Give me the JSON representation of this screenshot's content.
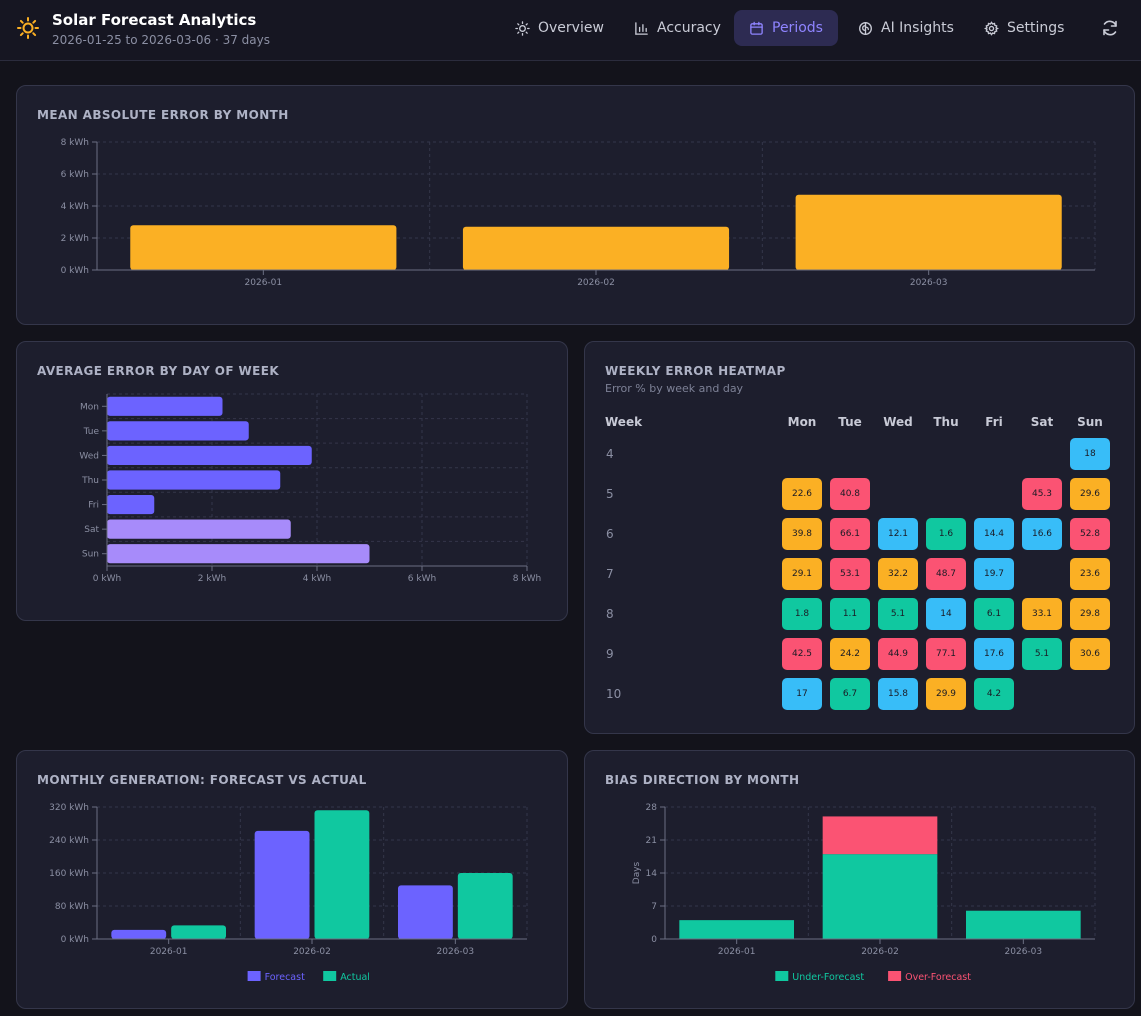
{
  "header": {
    "title": "Solar Forecast Analytics",
    "subtitle": "2026-01-25 to 2026-03-06 · 37 days",
    "nav": [
      {
        "label": "Overview",
        "icon": "sun-icon"
      },
      {
        "label": "Accuracy",
        "icon": "bar-chart-icon"
      },
      {
        "label": "Periods",
        "icon": "calendar-icon",
        "active": true
      },
      {
        "label": "AI Insights",
        "icon": "brain-icon"
      },
      {
        "label": "Settings",
        "icon": "gear-icon"
      }
    ],
    "refresh_icon": "refresh-icon"
  },
  "colors": {
    "accent": "#8f84ff",
    "amber": "#fbb024",
    "purple": "#6c63ff",
    "lavender": "#a78bfa",
    "green": "#10c8a0",
    "red": "#fb5373",
    "blue": "#38bdf8"
  },
  "cards": {
    "mae": {
      "title": "MEAN ABSOLUTE ERROR BY MONTH"
    },
    "dow": {
      "title": "AVERAGE ERROR BY DAY OF WEEK"
    },
    "heatmap": {
      "title": "WEEKLY ERROR HEATMAP",
      "subtitle": "Error % by week and day"
    },
    "monthly": {
      "title": "MONTHLY GENERATION: FORECAST VS ACTUAL"
    },
    "bias": {
      "title": "BIAS DIRECTION BY MONTH"
    }
  },
  "chart_data": [
    {
      "id": "mae",
      "type": "bar",
      "categories": [
        "2026-01",
        "2026-02",
        "2026-03"
      ],
      "values": [
        2.8,
        2.7,
        4.7
      ],
      "ylim": [
        0,
        8
      ],
      "yticks": [
        0,
        2,
        4,
        6,
        8
      ],
      "ytick_labels": [
        "0 kWh",
        "2 kWh",
        "4 kWh",
        "6 kWh",
        "8 kWh"
      ],
      "color": "#fbb024",
      "grid": true
    },
    {
      "id": "dow",
      "type": "bar",
      "orientation": "horizontal",
      "categories": [
        "Mon",
        "Tue",
        "Wed",
        "Thu",
        "Fri",
        "Sat",
        "Sun"
      ],
      "values": [
        2.2,
        2.7,
        3.9,
        3.3,
        0.9,
        3.5,
        5.0
      ],
      "xlim": [
        0,
        8
      ],
      "xticks": [
        0,
        2,
        4,
        6,
        8
      ],
      "xtick_labels": [
        "0 kWh",
        "2 kWh",
        "4 kWh",
        "6 kWh",
        "8 kWh"
      ],
      "colors": [
        "#6c63ff",
        "#6c63ff",
        "#6c63ff",
        "#6c63ff",
        "#6c63ff",
        "#a78bfa",
        "#a78bfa"
      ],
      "grid": true
    },
    {
      "id": "heatmap",
      "type": "heatmap",
      "week_label": "Week",
      "days": [
        "Mon",
        "Tue",
        "Wed",
        "Thu",
        "Fri",
        "Sat",
        "Sun"
      ],
      "rows": [
        {
          "week": "4",
          "values": [
            null,
            null,
            null,
            null,
            null,
            null,
            18
          ]
        },
        {
          "week": "5",
          "values": [
            22.6,
            40.8,
            null,
            null,
            null,
            45.3,
            29.6
          ]
        },
        {
          "week": "6",
          "values": [
            39.8,
            66.1,
            12.1,
            1.6,
            14.4,
            16.6,
            52.8
          ]
        },
        {
          "week": "7",
          "values": [
            29.1,
            53.1,
            32.2,
            48.7,
            19.7,
            null,
            23.6
          ]
        },
        {
          "week": "8",
          "values": [
            1.8,
            1.1,
            5.1,
            14,
            6.1,
            33.1,
            29.8
          ]
        },
        {
          "week": "9",
          "values": [
            42.5,
            24.2,
            44.9,
            77.1,
            17.6,
            5.1,
            30.6
          ]
        },
        {
          "week": "10",
          "values": [
            17,
            6.7,
            15.8,
            29.9,
            4.2,
            null,
            null
          ]
        }
      ]
    },
    {
      "id": "monthly",
      "type": "bar",
      "categories": [
        "2026-01",
        "2026-02",
        "2026-03"
      ],
      "series": [
        {
          "name": "Forecast",
          "values": [
            22,
            262,
            130
          ],
          "color": "#6c63ff"
        },
        {
          "name": "Actual",
          "values": [
            33,
            312,
            160
          ],
          "color": "#10c8a0"
        }
      ],
      "ylim": [
        0,
        320
      ],
      "yticks": [
        0,
        80,
        160,
        240,
        320
      ],
      "ytick_labels": [
        "0 kWh",
        "80 kWh",
        "160 kWh",
        "240 kWh",
        "320 kWh"
      ],
      "legend": "bottom",
      "grid": true
    },
    {
      "id": "bias",
      "type": "bar",
      "stacked": true,
      "categories": [
        "2026-01",
        "2026-02",
        "2026-03"
      ],
      "series": [
        {
          "name": "Under-Forecast",
          "values": [
            4,
            18,
            6
          ],
          "color": "#10c8a0"
        },
        {
          "name": "Over-Forecast",
          "values": [
            0,
            8,
            0
          ],
          "color": "#fb5373"
        }
      ],
      "ylabel": "Days",
      "ylim": [
        0,
        28
      ],
      "yticks": [
        0,
        7,
        14,
        21,
        28
      ],
      "ytick_labels": [
        "0",
        "7",
        "14",
        "21",
        "28"
      ],
      "legend": "bottom",
      "grid": true
    }
  ]
}
